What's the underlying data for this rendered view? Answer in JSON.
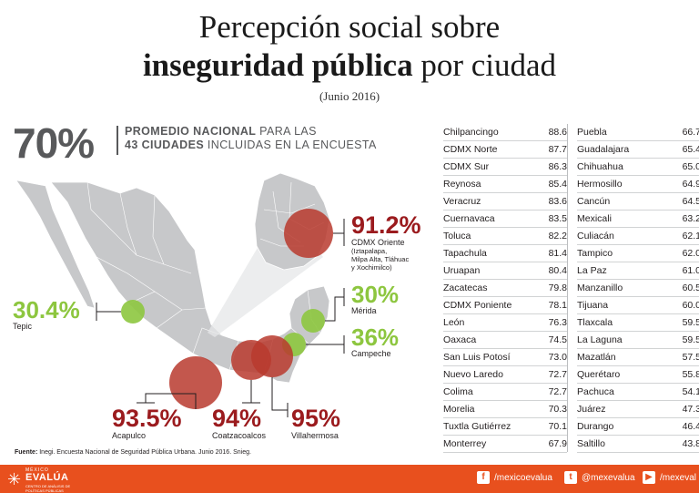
{
  "title": {
    "line1": "Percepción social sobre",
    "line2_bold": "inseguridad pública",
    "line2_rest": " por ciudad",
    "date": "(Junio 2016)"
  },
  "national": {
    "value": "70%",
    "line1_bold": "PROMEDIO NACIONAL",
    "line1_rest": " PARA LAS",
    "line2_bold": "43 CIUDADES",
    "line2_rest": " INCLUIDAS EN LA ENCUESTA"
  },
  "highlights": {
    "cdmx_oriente": {
      "value": "91.2%",
      "name": "CDMX Oriente",
      "note1": "(Iztapalapa,",
      "note2": "Milpa Alta, Tláhuac",
      "note3": "y Xochimilco)"
    },
    "tepic": {
      "value": "30.4%",
      "name": "Tepic"
    },
    "merida": {
      "value": "30%",
      "name": "Mérida"
    },
    "campeche": {
      "value": "36%",
      "name": "Campeche"
    },
    "acapulco": {
      "value": "93.5%",
      "name": "Acapulco"
    },
    "coatzacoalcos": {
      "value": "94%",
      "name": "Coatzacoalcos"
    },
    "villahermosa": {
      "value": "95%",
      "name": "Villahermosa"
    }
  },
  "colors": {
    "red": "#9b1b1e",
    "bubble_red": "#b83a2e",
    "green": "#8dc63f",
    "map": "#c7c8ca",
    "orange": "#e8501e"
  },
  "chart_data": {
    "type": "table",
    "title": "Percepción social sobre inseguridad pública por ciudad",
    "subtitle": "(Junio 2016)",
    "national_average": 70,
    "columns": [
      [
        {
          "city": "Chilpancingo",
          "value": "88.6"
        },
        {
          "city": "CDMX Norte",
          "value": "87.7"
        },
        {
          "city": "CDMX Sur",
          "value": "86.3"
        },
        {
          "city": "Reynosa",
          "value": "85.4"
        },
        {
          "city": "Veracruz",
          "value": "83.6"
        },
        {
          "city": "Cuernavaca",
          "value": "83.5"
        },
        {
          "city": "Toluca",
          "value": "82.2"
        },
        {
          "city": "Tapachula",
          "value": "81.4"
        },
        {
          "city": "Uruapan",
          "value": "80.4"
        },
        {
          "city": "Zacatecas",
          "value": "79.8"
        },
        {
          "city": "CDMX Poniente",
          "value": "78.1"
        },
        {
          "city": "León",
          "value": "76.3"
        },
        {
          "city": "Oaxaca",
          "value": "74.5"
        },
        {
          "city": "San Luis Potosí",
          "value": "73.0"
        },
        {
          "city": "Nuevo Laredo",
          "value": "72.7"
        },
        {
          "city": "Colima",
          "value": "72.7"
        },
        {
          "city": "Morelia",
          "value": "70.3"
        },
        {
          "city": "Tuxtla Gutiérrez",
          "value": "70.1"
        },
        {
          "city": "Monterrey",
          "value": "67.9"
        }
      ],
      [
        {
          "city": "Puebla",
          "value": "66.7"
        },
        {
          "city": "Guadalajara",
          "value": "65.4"
        },
        {
          "city": "Chihuahua",
          "value": "65.0"
        },
        {
          "city": "Hermosillo",
          "value": "64.9"
        },
        {
          "city": "Cancún",
          "value": "64.5"
        },
        {
          "city": "Mexicali",
          "value": "63.2"
        },
        {
          "city": "Culiacán",
          "value": "62.1"
        },
        {
          "city": "Tampico",
          "value": "62.0"
        },
        {
          "city": "La Paz",
          "value": "61.0"
        },
        {
          "city": "Manzanillo",
          "value": "60.5"
        },
        {
          "city": "Tijuana",
          "value": "60.0"
        },
        {
          "city": "Tlaxcala",
          "value": "59.5"
        },
        {
          "city": "La Laguna",
          "value": "59.5"
        },
        {
          "city": "Mazatlán",
          "value": "57.5"
        },
        {
          "city": "Querétaro",
          "value": "55.8"
        },
        {
          "city": "Pachuca",
          "value": "54.1"
        },
        {
          "city": "Juárez",
          "value": "47.3"
        },
        {
          "city": "Durango",
          "value": "46.4"
        },
        {
          "city": "Saltillo",
          "value": "43.8"
        }
      ]
    ]
  },
  "source": {
    "label": "Fuente:",
    "text": " Inegi. Encuesta Nacional de Seguridad Pública Urbana. Junio 2016. Snieg."
  },
  "footer": {
    "logo_top": "MÉXICO",
    "logo_main": "EVALÚA",
    "logo_sub": "CENTRO DE ANÁLISIS DE POLÍTICAS PÚBLICAS",
    "facebook": "/mexicoevalua",
    "twitter": "@mexevalua",
    "youtube": "/mexeval",
    "facebook_icon": "facebook-icon",
    "twitter_icon": "twitter-icon",
    "youtube_icon": "youtube-icon"
  }
}
